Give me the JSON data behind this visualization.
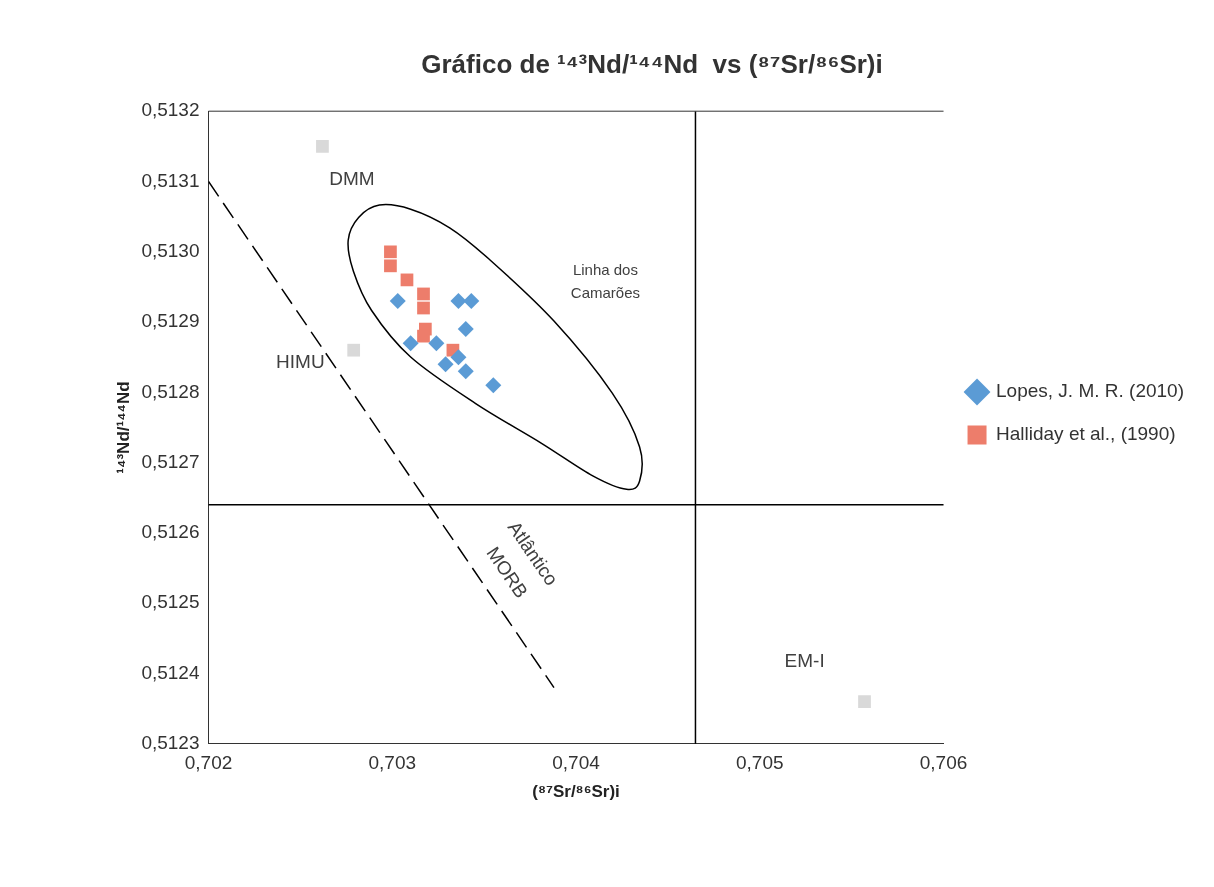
{
  "chart_data": {
    "type": "scatter",
    "title": "Gráfico de ¹⁴³Nd/¹⁴⁴Nd  vs (⁸⁷Sr/⁸⁶Sr)i",
    "xlabel": "(⁸⁷Sr/⁸⁶Sr)i",
    "ylabel": "¹⁴³Nd/¹⁴⁴Nd",
    "series": [
      {
        "name": "Lopes, J. M. R. (2010)",
        "color": "#5b9bd5",
        "marker": "diamond",
        "x": [
          0.70303,
          0.70336,
          0.70343,
          0.7034,
          0.7031,
          0.70324,
          0.70336,
          0.7034,
          0.70329,
          0.70355
        ],
        "values": [
          0.51293,
          0.51293,
          0.51293,
          0.51289,
          0.51287,
          0.51287,
          0.51285,
          0.51283,
          0.51284,
          0.51281
        ]
      },
      {
        "name": "Halliday et al., (1990)",
        "color": "#ed7d6b",
        "marker": "square",
        "x": [
          0.70299,
          0.70299,
          0.70308,
          0.70317,
          0.70317,
          0.70318,
          0.70317,
          0.70333
        ],
        "values": [
          0.513,
          0.51298,
          0.51296,
          0.51294,
          0.51292,
          0.51289,
          0.51288,
          0.51286
        ]
      },
      {
        "color": "#d9d9d9",
        "marker": "square",
        "x": [
          0.70262,
          0.70279,
          0.70557
        ],
        "values": [
          0.51315,
          0.51286,
          0.51236
        ]
      },
      {
        "type": "line",
        "color": "#000000",
        "line_style": "dashed",
        "marker": "none",
        "x": [
          0.702,
          0.70388
        ],
        "values": [
          0.5131,
          0.51238
        ]
      }
    ],
    "xlim": [
      0.702,
      0.706
    ],
    "xticks": [
      {
        "value": 0.702,
        "label": "0,702"
      },
      {
        "value": 0.703,
        "label": "0,703"
      },
      {
        "value": 0.704,
        "label": "0,704"
      },
      {
        "value": 0.705,
        "label": "0,705"
      },
      {
        "value": 0.706,
        "label": "0,706"
      }
    ],
    "ylim": [
      0.5123,
      0.5132
    ],
    "yticks": [
      {
        "value": 0.5123,
        "label": "0,5123"
      },
      {
        "value": 0.5124,
        "label": "0,5124"
      },
      {
        "value": 0.5125,
        "label": "0,5125"
      },
      {
        "value": 0.5126,
        "label": "0,5126"
      },
      {
        "value": 0.5127,
        "label": "0,5127"
      },
      {
        "value": 0.5128,
        "label": "0,5128"
      },
      {
        "value": 0.5129,
        "label": "0,5129"
      },
      {
        "value": 0.513,
        "label": "0,5130"
      },
      {
        "value": 0.5131,
        "label": "0,5131"
      },
      {
        "value": 0.5132,
        "label": "0,5132"
      }
    ],
    "ref_lines": [
      {
        "axis": "x",
        "value": 0.70465,
        "color": "#000000"
      },
      {
        "axis": "y",
        "value": 0.51264,
        "color": "#000000"
      }
    ],
    "annotations": [
      "DMM",
      "HIMU",
      "EM-I",
      "Linha dos",
      "Camarões",
      "Atlântico",
      "MORB"
    ],
    "legend": "right",
    "grid": false
  }
}
